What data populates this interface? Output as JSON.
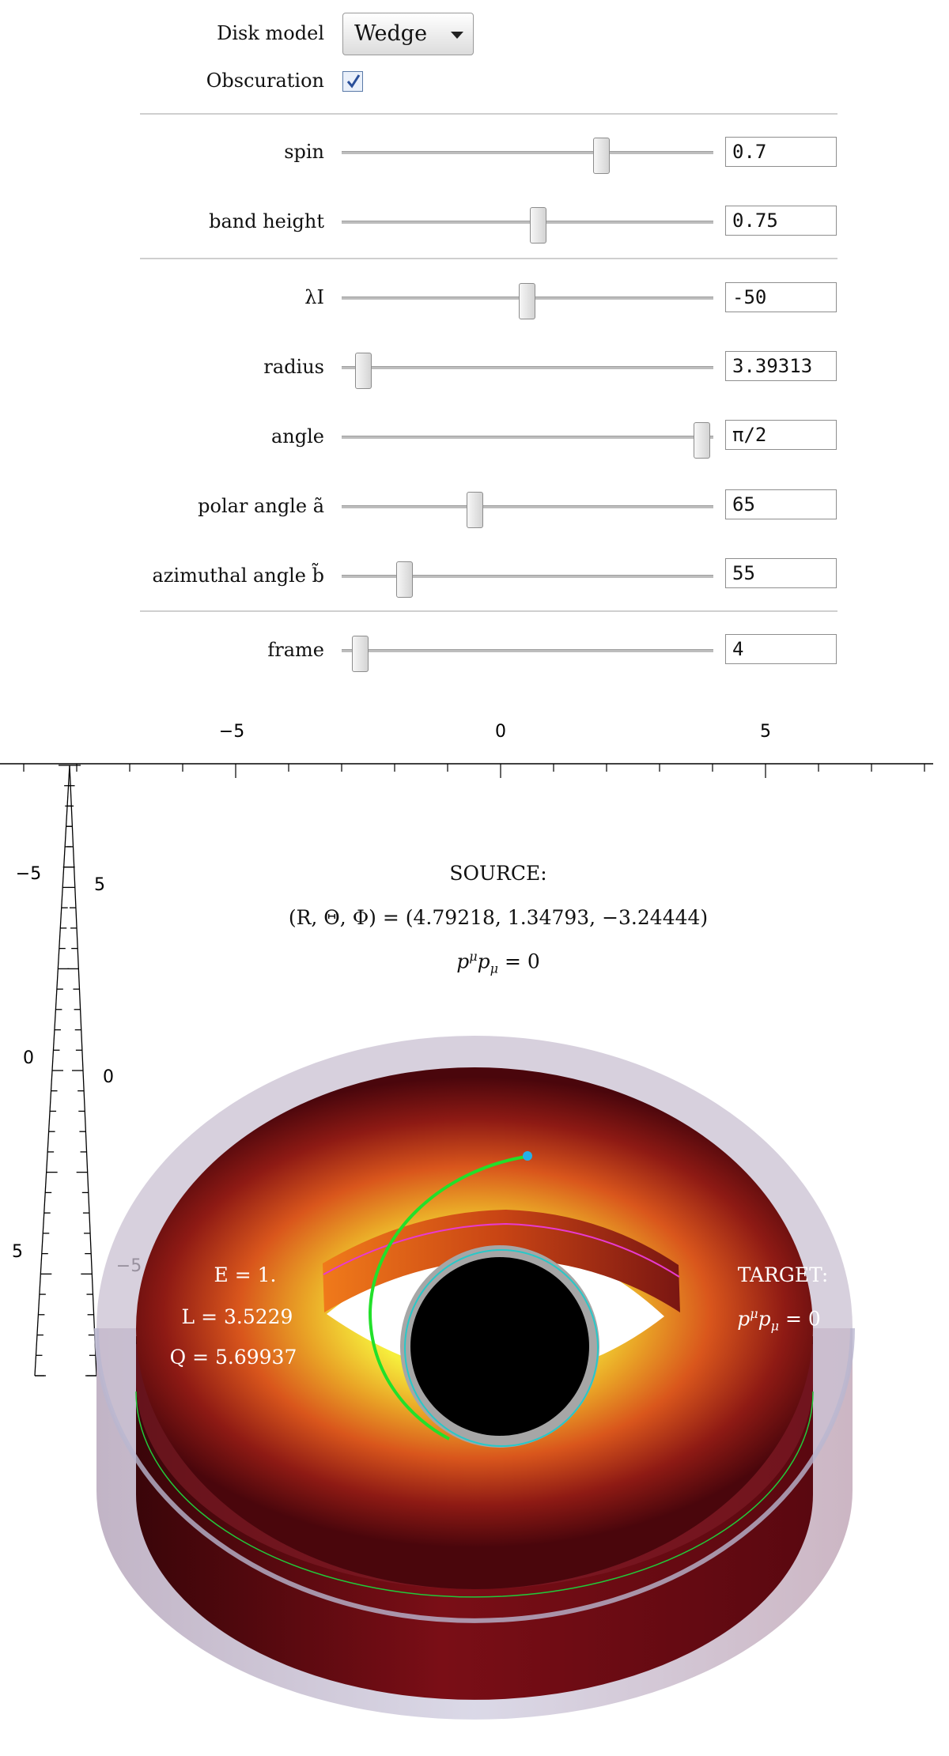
{
  "controls": {
    "disk_model_label": "Disk model",
    "disk_model_value": "Wedge",
    "obscuration_label": "Obscuration",
    "obscuration_checked": true,
    "sliders": [
      {
        "label": "spin",
        "value": "0.7",
        "fraction": 0.7
      },
      {
        "label": "band height",
        "value": "0.75",
        "fraction": 0.53
      },
      {
        "label": "λI",
        "value": "-50",
        "fraction": 0.5
      },
      {
        "label": "radius",
        "value": "3.39313",
        "fraction": 0.06
      },
      {
        "label": "angle",
        "value": "π/2",
        "fraction": 0.97
      },
      {
        "label": "polar angle ã",
        "value": "65",
        "fraction": 0.36
      },
      {
        "label": "azimuthal angle b̃",
        "value": "55",
        "fraction": 0.17
      },
      {
        "label": "frame",
        "value": "4",
        "fraction": 0.05
      }
    ]
  },
  "plot": {
    "top_axis_ticks": [
      "−5",
      "0",
      "5"
    ],
    "left_axis_ticks_outer": [
      "−5",
      "0",
      "5"
    ],
    "left_axis_ticks_inner": [
      "5",
      "0",
      "−5"
    ],
    "source_title": "SOURCE:",
    "source_coords": "(R, Θ, Φ) = (4.79218, 1.34793, −3.24444)",
    "source_null": "p",
    "target_title": "TARGET:",
    "energy": "E = 1.",
    "angular_momentum": "L = 3.5229",
    "carter_constant": "Q = 5.69937",
    "null_condition_sup": "μ",
    "null_condition_sub": "μ",
    "null_condition_rhs": " = 0",
    "colors": {
      "disk_hot": "#f4ea3a",
      "disk_mid": "#d9561c",
      "disk_cold": "#5a0810",
      "geodesic": "#22e02a",
      "photon_ring": "#e83ad0",
      "horizon": "#000000",
      "ergosphere_outline": "#28c8c8"
    }
  }
}
